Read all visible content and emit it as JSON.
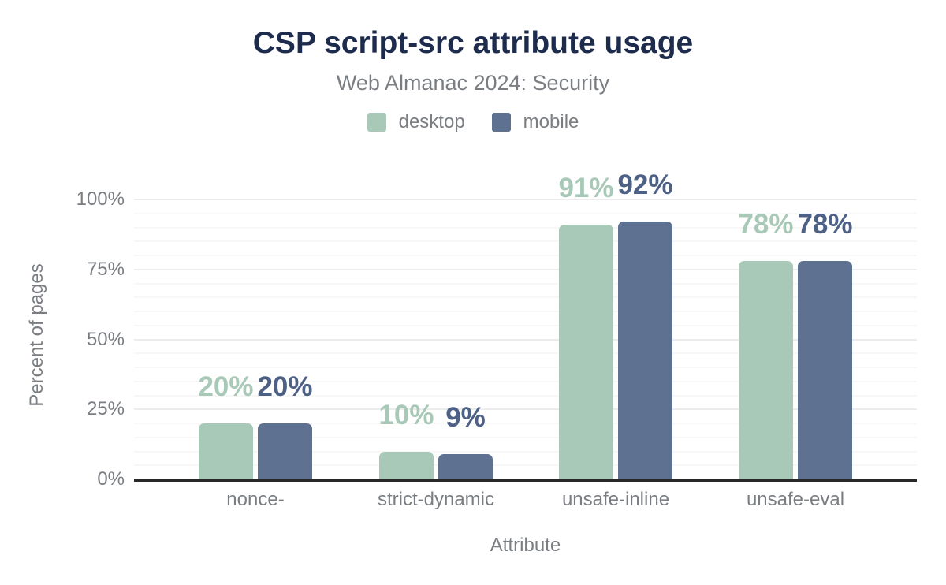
{
  "header": {
    "title": "CSP script-src attribute usage",
    "subtitle": "Web Almanac 2024: Security"
  },
  "legend": {
    "items": [
      {
        "label": "desktop",
        "color": "#a9c9b8"
      },
      {
        "label": "mobile",
        "color": "#5f7190"
      }
    ]
  },
  "colors": {
    "title_text": "#1d2b4d",
    "muted_text": "#7a7e82",
    "axis_line": "#282828",
    "grid_minor": "#f7f7f7",
    "grid_major": "#ececec",
    "desktop": "#a9c9b8",
    "mobile": "#5f7190",
    "mobile_value_label": "#4d6086"
  },
  "chart_data": {
    "type": "bar",
    "title": "CSP script-src attribute usage",
    "subtitle": "Web Almanac 2024: Security",
    "categories": [
      "nonce-",
      "strict-dynamic",
      "unsafe-inline",
      "unsafe-eval"
    ],
    "series": [
      {
        "name": "desktop",
        "color": "#a9c9b8",
        "label_color": "#a9c9b8",
        "values": [
          20,
          10,
          91,
          78
        ],
        "data_labels": [
          "20%",
          "10%",
          "91%",
          "78%"
        ]
      },
      {
        "name": "mobile",
        "color": "#5f7190",
        "label_color": "#4d6086",
        "values": [
          20,
          9,
          92,
          78
        ],
        "data_labels": [
          "20%",
          "9%",
          "92%",
          "78%"
        ]
      }
    ],
    "xlabel": "Attribute",
    "ylabel": "Percent of pages",
    "ylim": [
      0,
      100
    ],
    "yticks": [
      {
        "label": "0%",
        "value": 0
      },
      {
        "label": "25%",
        "value": 25
      },
      {
        "label": "50%",
        "value": 50
      },
      {
        "label": "75%",
        "value": 75
      },
      {
        "label": "100%",
        "value": 100
      }
    ],
    "grid": {
      "horizontal": true,
      "minor_step": 5,
      "major_step": 25
    },
    "legend_position": "top"
  }
}
